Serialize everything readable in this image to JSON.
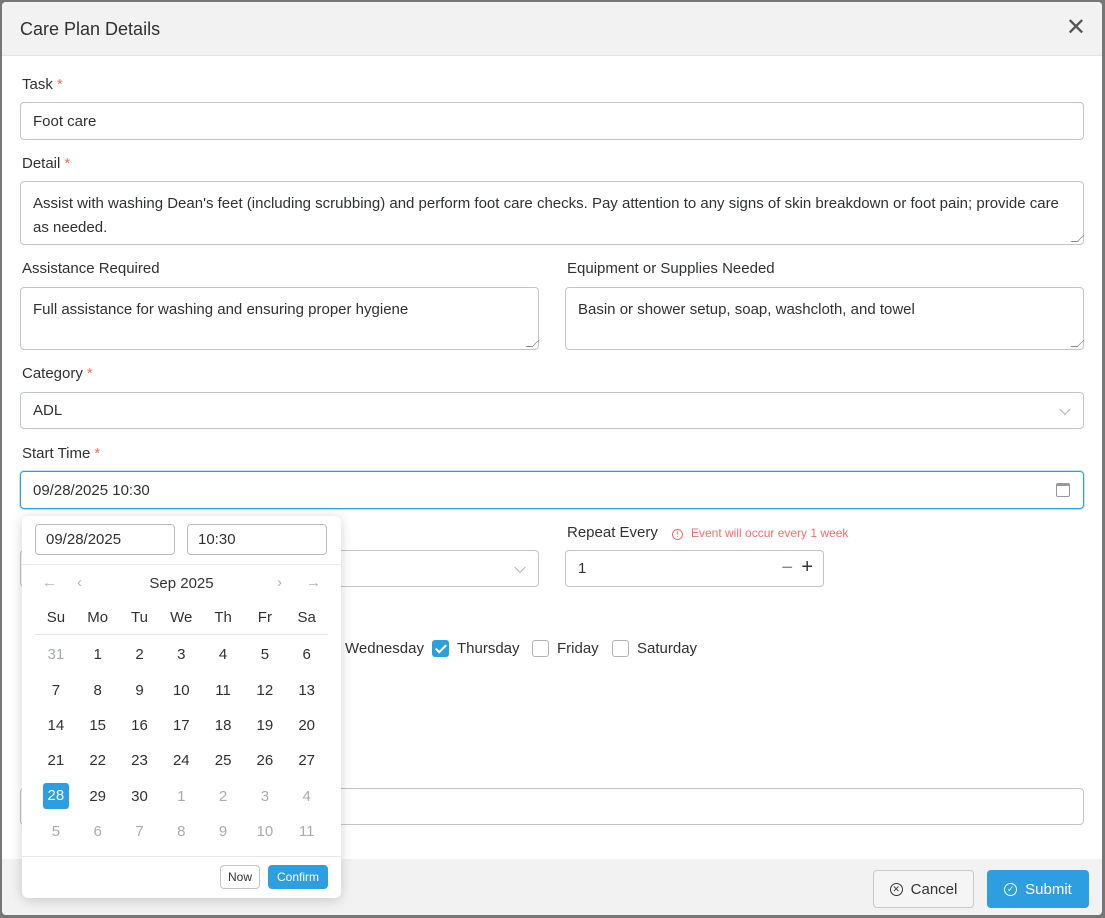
{
  "dialog": {
    "title": "Care Plan Details"
  },
  "form": {
    "task": {
      "label": "Task",
      "value": "Foot care"
    },
    "detail": {
      "label": "Detail",
      "value": "Assist with washing Dean's feet (including scrubbing) and perform foot care checks. Pay attention to any signs of skin breakdown or foot pain; provide care as needed."
    },
    "assistance": {
      "label": "Assistance Required",
      "value": "Full assistance for washing and ensuring proper hygiene"
    },
    "equipment": {
      "label": "Equipment or Supplies Needed",
      "value": "Basin or shower setup, soap, washcloth, and towel"
    },
    "category": {
      "label": "Category",
      "value": "ADL"
    },
    "start_time": {
      "label": "Start Time",
      "value": "09/28/2025 10:30"
    },
    "repeat_every": {
      "label": "Repeat Every",
      "hint": "Event will occur every 1 week",
      "value": "1"
    },
    "days": [
      {
        "label": "Wednesday",
        "checked": false
      },
      {
        "label": "Thursday",
        "checked": true
      },
      {
        "label": "Friday",
        "checked": false
      },
      {
        "label": "Saturday",
        "checked": false
      }
    ]
  },
  "picker": {
    "date": "09/28/2025",
    "time": "10:30",
    "month": "Sep 2025",
    "weekdays": [
      "Su",
      "Mo",
      "Tu",
      "We",
      "Th",
      "Fr",
      "Sa"
    ],
    "weeks": [
      [
        "31",
        "1",
        "2",
        "3",
        "4",
        "5",
        "6"
      ],
      [
        "7",
        "8",
        "9",
        "10",
        "11",
        "12",
        "13"
      ],
      [
        "14",
        "15",
        "16",
        "17",
        "18",
        "19",
        "20"
      ],
      [
        "21",
        "22",
        "23",
        "24",
        "25",
        "26",
        "27"
      ],
      [
        "28",
        "29",
        "30",
        "1",
        "2",
        "3",
        "4"
      ],
      [
        "5",
        "6",
        "7",
        "8",
        "9",
        "10",
        "11"
      ]
    ],
    "selected": "28",
    "now": "Now",
    "confirm": "Confirm"
  },
  "footer": {
    "cancel": "Cancel",
    "submit": "Submit"
  },
  "colors": {
    "primary": "#2d9fe0",
    "required": "#f56c6c"
  }
}
